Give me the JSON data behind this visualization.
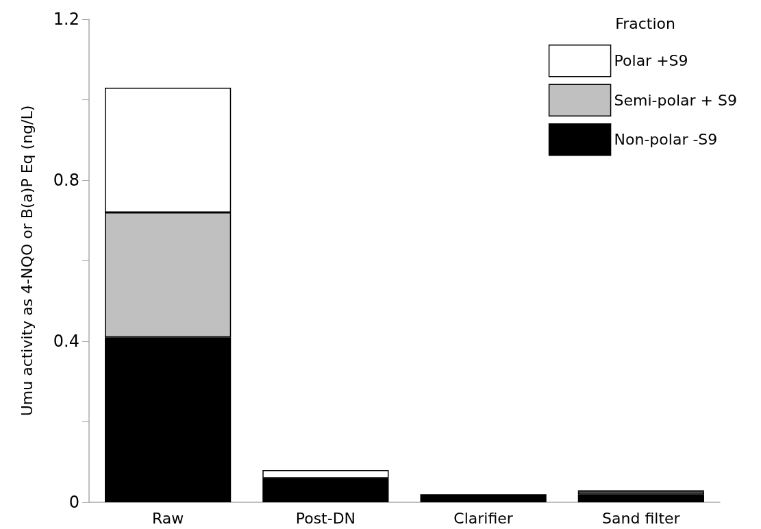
{
  "chart_data": {
    "type": "bar",
    "stacked": true,
    "ylabel": "Umu activity as 4-NQO or B(a)P Eq (ng/L)",
    "legend_title": "Fraction",
    "legend": "top right",
    "grid": false,
    "categories": [
      "Raw",
      "Post-DN",
      "Clarifier",
      "Sand filter"
    ],
    "ylim": [
      0,
      1.2
    ],
    "yticks": [
      0,
      {
        "value": 0.2,
        "label": null
      },
      0.4,
      {
        "value": 0.6,
        "label": null
      },
      0.8,
      {
        "value": 1.0,
        "label": null
      },
      1.2
    ],
    "series": [
      {
        "name": "Non-polar -S9",
        "color": "#000000",
        "values": [
          0.41,
          0.06,
          0.02,
          0.02
        ]
      },
      {
        "name": "Semi-polar + S9",
        "color": "#c0c0c0",
        "values": [
          0.31,
          null,
          null,
          0.007
        ]
      },
      {
        "name": "Polar +S9",
        "color": "#ffffff",
        "values": [
          0.31,
          0.02,
          null,
          0.003
        ]
      }
    ]
  }
}
